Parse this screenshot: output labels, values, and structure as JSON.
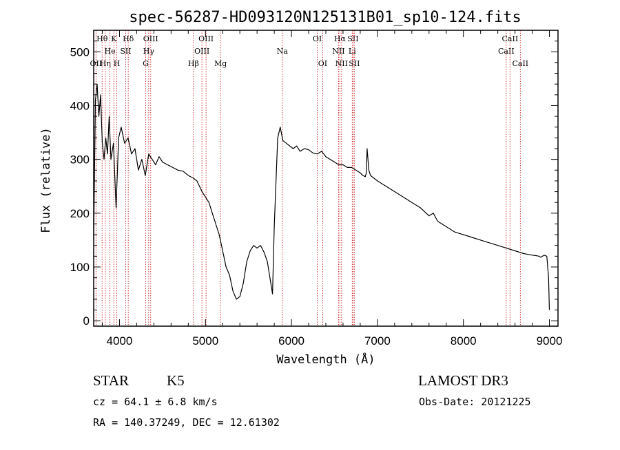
{
  "chart_data": {
    "type": "line",
    "title": "spec-56287-HD093120N125131B01_sp10-124.fits",
    "xlabel": "Wavelength (Å)",
    "ylabel": "Flux (relative)",
    "xlim": [
      3700,
      9100
    ],
    "ylim": [
      -10,
      540
    ],
    "xticks": [
      4000,
      5000,
      6000,
      7000,
      8000,
      9000
    ],
    "yticks": [
      0,
      100,
      200,
      300,
      400,
      500
    ],
    "xtick_labels": [
      "4000",
      "5000",
      "6000",
      "7000",
      "8000",
      "9000"
    ],
    "ytick_labels": [
      "0",
      "100",
      "200",
      "300",
      "400",
      "500"
    ],
    "series": [
      {
        "name": "flux",
        "x": [
          3700,
          3720,
          3740,
          3760,
          3780,
          3800,
          3820,
          3840,
          3860,
          3880,
          3900,
          3930,
          3960,
          3990,
          4020,
          4060,
          4100,
          4140,
          4180,
          4220,
          4260,
          4300,
          4340,
          4380,
          4420,
          4460,
          4500,
          4560,
          4620,
          4680,
          4740,
          4800,
          4860,
          4900,
          4960,
          5000,
          5040,
          5080,
          5120,
          5160,
          5200,
          5240,
          5280,
          5320,
          5360,
          5400,
          5440,
          5480,
          5520,
          5560,
          5600,
          5640,
          5680,
          5720,
          5760,
          5780,
          5800,
          5840,
          5870,
          5900,
          5940,
          5980,
          6020,
          6060,
          6100,
          6150,
          6200,
          6250,
          6300,
          6350,
          6400,
          6450,
          6500,
          6550,
          6600,
          6650,
          6700,
          6750,
          6800,
          6830,
          6860,
          6870,
          6880,
          6900,
          6920,
          6960,
          7000,
          7050,
          7100,
          7200,
          7300,
          7400,
          7500,
          7600,
          7650,
          7700,
          7800,
          7900,
          8000,
          8100,
          8200,
          8300,
          8400,
          8500,
          8600,
          8700,
          8800,
          8850,
          8880,
          8900,
          8940,
          8970,
          8990,
          9000
        ],
        "y": [
          150,
          410,
          440,
          380,
          420,
          330,
          300,
          340,
          310,
          380,
          300,
          330,
          210,
          340,
          360,
          330,
          340,
          310,
          320,
          280,
          300,
          270,
          310,
          300,
          290,
          305,
          295,
          290,
          285,
          280,
          278,
          270,
          265,
          260,
          240,
          230,
          220,
          200,
          180,
          160,
          130,
          100,
          85,
          55,
          40,
          45,
          70,
          110,
          130,
          140,
          135,
          140,
          128,
          110,
          70,
          50,
          175,
          340,
          360,
          335,
          330,
          325,
          320,
          325,
          315,
          320,
          318,
          312,
          310,
          315,
          305,
          300,
          295,
          290,
          290,
          285,
          285,
          280,
          275,
          270,
          268,
          275,
          320,
          280,
          270,
          265,
          260,
          255,
          250,
          240,
          230,
          220,
          210,
          195,
          200,
          185,
          175,
          165,
          160,
          155,
          150,
          145,
          140,
          135,
          130,
          125,
          122,
          121,
          120,
          118,
          122,
          120,
          80,
          20
        ]
      }
    ],
    "line_markers": [
      {
        "name": "OII",
        "wavelength": 3727,
        "row": 2
      },
      {
        "name": "Hθ",
        "wavelength": 3798,
        "row": 0
      },
      {
        "name": "Hη",
        "wavelength": 3835,
        "row": 2
      },
      {
        "name": "He",
        "wavelength": 3889,
        "row": 1
      },
      {
        "name": "K",
        "wavelength": 3934,
        "row": 0
      },
      {
        "name": "H",
        "wavelength": 3969,
        "row": 2
      },
      {
        "name": "SII",
        "wavelength": 4072,
        "row": 1
      },
      {
        "name": "Hδ",
        "wavelength": 4102,
        "row": 0
      },
      {
        "name": "G",
        "wavelength": 4305,
        "row": 2
      },
      {
        "name": "Hγ",
        "wavelength": 4340,
        "row": 1
      },
      {
        "name": "OIII",
        "wavelength": 4363,
        "row": 0
      },
      {
        "name": "Hβ",
        "wavelength": 4861,
        "row": 2
      },
      {
        "name": "OIII",
        "wavelength": 4959,
        "row": 1
      },
      {
        "name": "OIII",
        "wavelength": 5007,
        "row": 0
      },
      {
        "name": "Mg",
        "wavelength": 5175,
        "row": 2
      },
      {
        "name": "Na",
        "wavelength": 5894,
        "row": 1
      },
      {
        "name": "OI",
        "wavelength": 6300,
        "row": 0
      },
      {
        "name": "OI",
        "wavelength": 6363,
        "row": 2
      },
      {
        "name": "NII",
        "wavelength": 6548,
        "row": 1
      },
      {
        "name": "Hα",
        "wavelength": 6563,
        "row": 0
      },
      {
        "name": "NII",
        "wavelength": 6583,
        "row": 2
      },
      {
        "name": "Li",
        "wavelength": 6707,
        "row": 1
      },
      {
        "name": "SII",
        "wavelength": 6716,
        "row": 0
      },
      {
        "name": "SII",
        "wavelength": 6731,
        "row": 2
      },
      {
        "name": "CaII",
        "wavelength": 8498,
        "row": 1
      },
      {
        "name": "CaII",
        "wavelength": 8542,
        "row": 0
      },
      {
        "name": "CaII",
        "wavelength": 8662,
        "row": 2
      }
    ]
  },
  "info": {
    "class": "STAR",
    "subclass": "K5",
    "survey": "LAMOST DR3",
    "redshift": "cz = 64.1 ± 6.8 km/s",
    "obs_date": "Obs-Date: 20121225",
    "coords": "RA = 140.37249, DEC =  12.61302"
  },
  "colors": {
    "spectrum": "#000000",
    "marker_lines": "#cc2222",
    "axes": "#000000",
    "background": "#ffffff"
  }
}
